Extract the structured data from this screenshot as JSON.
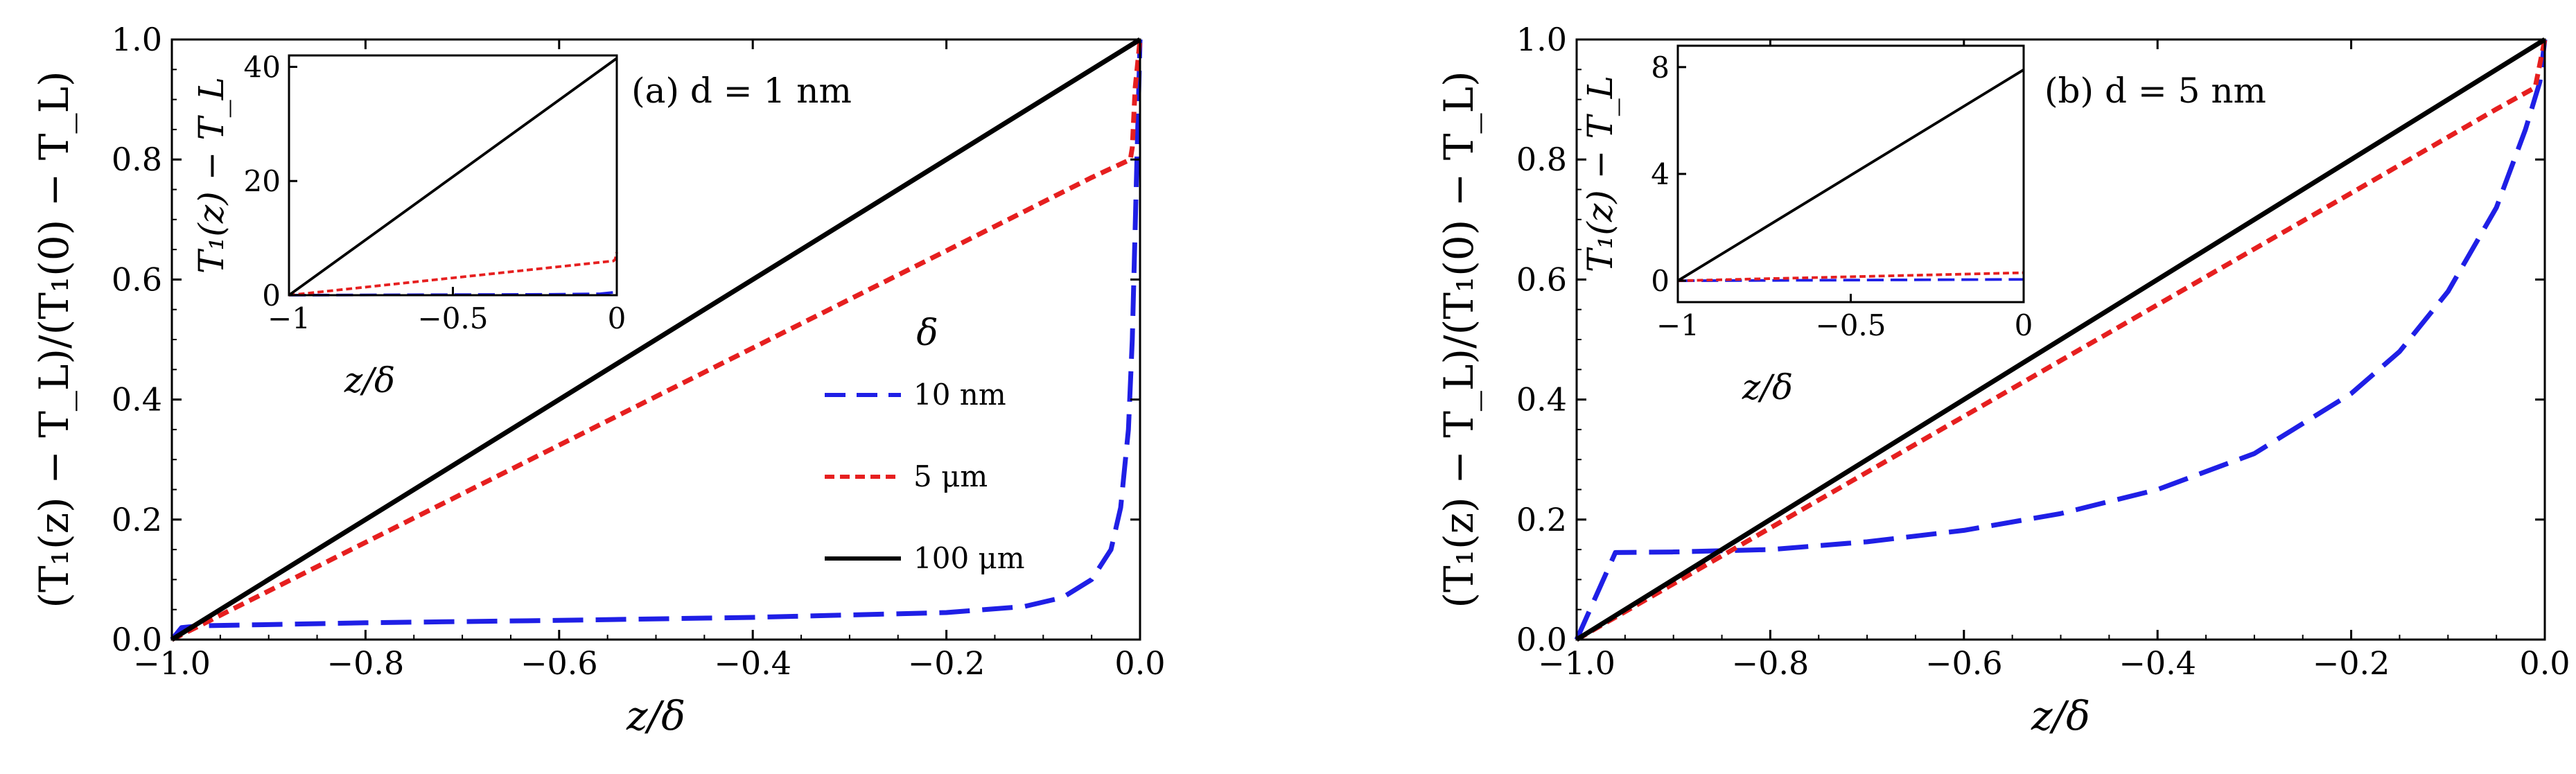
{
  "figure": {
    "colors": {
      "blue": "#1f1fe6",
      "red": "#e61f1f",
      "black": "#000000"
    }
  },
  "legend": {
    "title": "δ",
    "entries": [
      {
        "label": "10 nm",
        "color": "#1f1fe6",
        "style": "long-dash"
      },
      {
        "label": "5 μm",
        "color": "#e61f1f",
        "style": "short-dash"
      },
      {
        "label": "100 μm",
        "color": "#000000",
        "style": "solid"
      }
    ]
  },
  "chart_data": [
    {
      "type": "line",
      "panel_label": "(a)  d = 1 nm",
      "xlabel": "z/δ",
      "ylabel": "(T₁(z) − T_L)/(T₁(0) − T_L)",
      "xlim": [
        -1.0,
        0.0
      ],
      "ylim": [
        0.0,
        1.0
      ],
      "xticks": [
        -1.0,
        -0.8,
        -0.6,
        -0.4,
        -0.2,
        0.0
      ],
      "xtick_labels": [
        "−1.0",
        "−0.8",
        "−0.6",
        "−0.4",
        "−0.2",
        "0.0"
      ],
      "yticks": [
        0.0,
        0.2,
        0.4,
        0.6,
        0.8,
        1.0
      ],
      "ytick_labels": [
        "0.0",
        "0.2",
        "0.4",
        "0.6",
        "0.8",
        "1.0"
      ],
      "series": [
        {
          "name": "10 nm",
          "x": [
            -1.0,
            -0.99,
            -0.97,
            -0.9,
            -0.8,
            -0.6,
            -0.4,
            -0.2,
            -0.12,
            -0.08,
            -0.05,
            -0.03,
            -0.02,
            -0.012,
            -0.008,
            -0.004,
            0.0
          ],
          "values": [
            0.0,
            0.02,
            0.023,
            0.025,
            0.028,
            0.032,
            0.037,
            0.045,
            0.055,
            0.07,
            0.1,
            0.15,
            0.22,
            0.35,
            0.5,
            0.75,
            1.0
          ]
        },
        {
          "name": "5 μm",
          "x": [
            -1.0,
            -0.8,
            -0.6,
            -0.4,
            -0.2,
            -0.05,
            -0.01,
            -0.008,
            -0.005,
            0.0
          ],
          "values": [
            0.0,
            0.162,
            0.324,
            0.486,
            0.648,
            0.77,
            0.8,
            0.82,
            0.92,
            1.0
          ]
        },
        {
          "name": "100 μm",
          "x": [
            -1.0,
            0.0
          ],
          "values": [
            0.0,
            1.0
          ]
        }
      ],
      "inset": {
        "xlabel": "z/δ",
        "ylabel": "T₁(z) − T_L",
        "xlim": [
          -1.0,
          0.0
        ],
        "ylim": [
          0,
          42
        ],
        "xticks": [
          -1.0,
          -0.5,
          0.0
        ],
        "xtick_labels": [
          "−1",
          "−0.5",
          "0"
        ],
        "yticks": [
          0,
          20,
          40
        ],
        "ytick_labels": [
          "0",
          "20",
          "40"
        ],
        "series": [
          {
            "name": "10 nm",
            "x": [
              -1.0,
              -0.2,
              -0.05,
              -0.01,
              0.0
            ],
            "values": [
              0.0,
              0.15,
              0.25,
              0.5,
              1.3
            ]
          },
          {
            "name": "5 μm",
            "x": [
              -1.0,
              -0.01,
              -0.005,
              0.0
            ],
            "values": [
              0.0,
              6.0,
              6.3,
              7.5
            ]
          },
          {
            "name": "100 μm",
            "x": [
              -1.0,
              0.0
            ],
            "values": [
              0.0,
              41.5
            ]
          }
        ]
      }
    },
    {
      "type": "line",
      "panel_label": "(b)  d = 5 nm",
      "xlabel": "z/δ",
      "ylabel": "(T₁(z) − T_L)/(T₁(0) − T_L)",
      "xlim": [
        -1.0,
        0.0
      ],
      "ylim": [
        0.0,
        1.0
      ],
      "xticks": [
        -1.0,
        -0.8,
        -0.6,
        -0.4,
        -0.2,
        0.0
      ],
      "xtick_labels": [
        "−1.0",
        "−0.8",
        "−0.6",
        "−0.4",
        "−0.2",
        "0.0"
      ],
      "yticks": [
        0.0,
        0.2,
        0.4,
        0.6,
        0.8,
        1.0
      ],
      "ytick_labels": [
        "0.0",
        "0.2",
        "0.4",
        "0.6",
        "0.8",
        "1.0"
      ],
      "series": [
        {
          "name": "10 nm",
          "x": [
            -1.0,
            -0.96,
            -0.9,
            -0.8,
            -0.7,
            -0.6,
            -0.5,
            -0.4,
            -0.3,
            -0.2,
            -0.15,
            -0.1,
            -0.05,
            -0.02,
            -0.005,
            0.0
          ],
          "values": [
            0.0,
            0.145,
            0.146,
            0.15,
            0.163,
            0.182,
            0.21,
            0.25,
            0.31,
            0.41,
            0.48,
            0.58,
            0.72,
            0.85,
            0.93,
            1.0
          ]
        },
        {
          "name": "5 μm",
          "x": [
            -1.0,
            -0.8,
            -0.6,
            -0.4,
            -0.2,
            -0.05,
            -0.01,
            0.0
          ],
          "values": [
            0.0,
            0.186,
            0.372,
            0.558,
            0.744,
            0.884,
            0.92,
            1.0
          ]
        },
        {
          "name": "100 μm",
          "x": [
            -1.0,
            0.0
          ],
          "values": [
            0.0,
            1.0
          ]
        }
      ],
      "inset": {
        "xlabel": "z/δ",
        "ylabel": "T₁(z) − T_L",
        "xlim": [
          -1.0,
          0.0
        ],
        "ylim": [
          -0.8,
          8.8
        ],
        "xticks": [
          -1.0,
          -0.5,
          0.0
        ],
        "xtick_labels": [
          "−1",
          "−0.5",
          "0"
        ],
        "yticks": [
          0,
          4,
          8
        ],
        "ytick_labels": [
          "0",
          "4",
          "8"
        ],
        "series": [
          {
            "name": "10 nm",
            "x": [
              -1.0,
              0.0
            ],
            "values": [
              0.0,
              0.05
            ]
          },
          {
            "name": "5 μm",
            "x": [
              -1.0,
              0.0
            ],
            "values": [
              0.0,
              0.3
            ]
          },
          {
            "name": "100 μm",
            "x": [
              -1.0,
              0.0
            ],
            "values": [
              0.0,
              7.9
            ]
          }
        ]
      }
    }
  ]
}
